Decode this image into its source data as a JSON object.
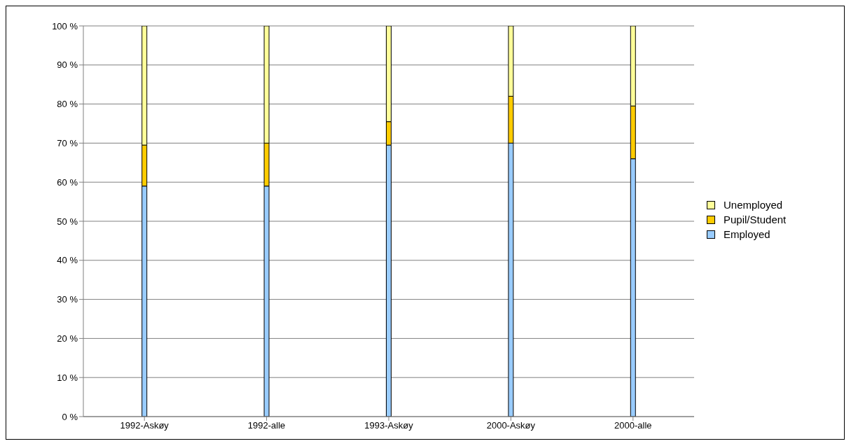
{
  "chart_data": {
    "type": "bar",
    "stacked": true,
    "categories": [
      "1992-Askøy",
      "1992-alle",
      "1993-Askøy",
      "2000-Askøy",
      "2000-alle"
    ],
    "series": [
      {
        "name": "Employed",
        "color": "#99ccff",
        "values": [
          59,
          59,
          69.5,
          70,
          66
        ]
      },
      {
        "name": "Pupil/Student",
        "color": "#ffcc00",
        "values": [
          10.5,
          11,
          6,
          12,
          13.5
        ]
      },
      {
        "name": "Unemployed",
        "color": "#ffff99",
        "values": [
          30.5,
          30,
          24.5,
          18,
          20.5
        ]
      }
    ],
    "ylim": [
      0,
      100
    ],
    "yticks": [
      {
        "value": 0,
        "label": "0 %"
      },
      {
        "value": 10,
        "label": "10 %"
      },
      {
        "value": 20,
        "label": "20 %"
      },
      {
        "value": 30,
        "label": "30 %"
      },
      {
        "value": 40,
        "label": "40 %"
      },
      {
        "value": 50,
        "label": "50 %"
      },
      {
        "value": 60,
        "label": "60 %"
      },
      {
        "value": 70,
        "label": "70 %"
      },
      {
        "value": 80,
        "label": "80 %"
      },
      {
        "value": 90,
        "label": "90 %"
      },
      {
        "value": 100,
        "label": "100 %"
      }
    ],
    "grid": "y",
    "legend": "right"
  }
}
